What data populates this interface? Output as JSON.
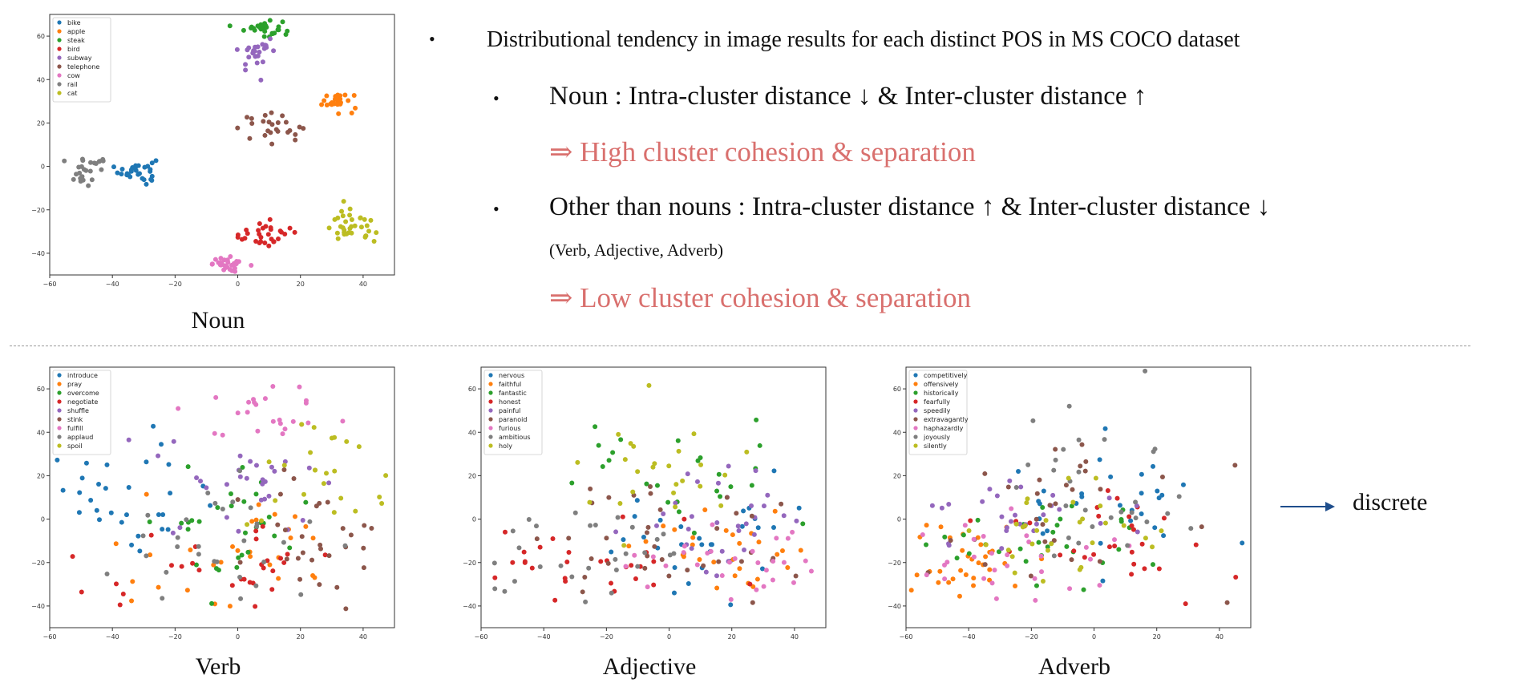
{
  "bullets": {
    "b1": "Distributional tendency in image results for each distinct POS in MS COCO dataset",
    "b2": "Noun : Intra-cluster distance ↓ & Inter-cluster distance ↑",
    "b2_result": "⇒ High cluster cohesion & separation",
    "b3": "Other than nouns : Intra-cluster distance ↑ & Inter-cluster distance ↓",
    "b3_note": "(Verb, Adjective, Adverb)",
    "b3_result": "⇒ Low cluster cohesion & separation",
    "bullet_char": "•"
  },
  "arrow_label": "discrete",
  "colors": {
    "accent_red": "#d9706e",
    "arrow_blue": "#1f4e8c",
    "palette": [
      "#1f77b4",
      "#ff7f0e",
      "#2ca02c",
      "#d62728",
      "#9467bd",
      "#8c564b",
      "#e377c2",
      "#7f7f7f",
      "#bcbd22"
    ]
  },
  "chart_data": [
    {
      "type": "scatter",
      "xlabel": "Noun",
      "xlim": [
        -60,
        50
      ],
      "ylim": [
        -50,
        70
      ],
      "xticks": [
        -60,
        -40,
        -20,
        0,
        20,
        40
      ],
      "yticks": [
        -40,
        -20,
        0,
        20,
        40,
        60
      ],
      "series": [
        {
          "name": "bike",
          "center": [
            -32,
            -2
          ],
          "spread": [
            3,
            3
          ],
          "n": 30
        },
        {
          "name": "apple",
          "center": [
            32,
            30
          ],
          "spread": [
            3,
            2
          ],
          "n": 28
        },
        {
          "name": "steak",
          "center": [
            8,
            64
          ],
          "spread": [
            3,
            2
          ],
          "n": 32
        },
        {
          "name": "bird",
          "center": [
            8,
            -31
          ],
          "spread": [
            5,
            3
          ],
          "n": 30
        },
        {
          "name": "subway",
          "center": [
            6,
            52
          ],
          "spread": [
            3,
            4
          ],
          "n": 25
        },
        {
          "name": "telephone",
          "center": [
            10,
            18
          ],
          "spread": [
            6,
            3
          ],
          "n": 25
        },
        {
          "name": "cow",
          "center": [
            -2,
            -45
          ],
          "spread": [
            3,
            1.5
          ],
          "n": 30
        },
        {
          "name": "rail",
          "center": [
            -48,
            -2
          ],
          "spread": [
            4,
            3
          ],
          "n": 25
        },
        {
          "name": "cat",
          "center": [
            36,
            -28
          ],
          "spread": [
            4,
            4
          ],
          "n": 35
        }
      ]
    },
    {
      "type": "scatter",
      "xlabel": "Verb",
      "xlim": [
        -60,
        50
      ],
      "ylim": [
        -50,
        70
      ],
      "xticks": [
        -60,
        -40,
        -20,
        0,
        20,
        40
      ],
      "yticks": [
        -40,
        -20,
        0,
        20,
        40,
        60
      ],
      "series": [
        {
          "name": "introduce",
          "center": [
            -35,
            10
          ],
          "spread": [
            14,
            14
          ],
          "n": 30
        },
        {
          "name": "pray",
          "center": [
            5,
            -15
          ],
          "spread": [
            18,
            12
          ],
          "n": 30
        },
        {
          "name": "overcome",
          "center": [
            -5,
            -5
          ],
          "spread": [
            14,
            14
          ],
          "n": 30
        },
        {
          "name": "negotiate",
          "center": [
            -5,
            -20
          ],
          "spread": [
            20,
            10
          ],
          "n": 30
        },
        {
          "name": "shuffle",
          "center": [
            5,
            15
          ],
          "spread": [
            15,
            12
          ],
          "n": 30
        },
        {
          "name": "stink",
          "center": [
            25,
            -5
          ],
          "spread": [
            14,
            14
          ],
          "n": 30
        },
        {
          "name": "fulfill",
          "center": [
            12,
            50
          ],
          "spread": [
            10,
            7
          ],
          "n": 25
        },
        {
          "name": "applaud",
          "center": [
            -15,
            -10
          ],
          "spread": [
            20,
            18
          ],
          "n": 30
        },
        {
          "name": "spoil",
          "center": [
            20,
            15
          ],
          "spread": [
            14,
            14
          ],
          "n": 25
        }
      ]
    },
    {
      "type": "scatter",
      "xlabel": "Adjective",
      "xlim": [
        -60,
        50
      ],
      "ylim": [
        -50,
        70
      ],
      "xticks": [
        -60,
        -40,
        -20,
        0,
        20,
        40
      ],
      "yticks": [
        -40,
        -20,
        0,
        20,
        40,
        60
      ],
      "series": [
        {
          "name": "nervous",
          "center": [
            15,
            -5
          ],
          "spread": [
            20,
            14
          ],
          "n": 30
        },
        {
          "name": "faithful",
          "center": [
            20,
            -15
          ],
          "spread": [
            14,
            10
          ],
          "n": 30
        },
        {
          "name": "fantastic",
          "center": [
            5,
            15
          ],
          "spread": [
            20,
            15
          ],
          "n": 25
        },
        {
          "name": "honest",
          "center": [
            -25,
            -20
          ],
          "spread": [
            20,
            10
          ],
          "n": 30
        },
        {
          "name": "painful",
          "center": [
            15,
            0
          ],
          "spread": [
            15,
            12
          ],
          "n": 30
        },
        {
          "name": "paranoid",
          "center": [
            5,
            -10
          ],
          "spread": [
            25,
            14
          ],
          "n": 35
        },
        {
          "name": "furious",
          "center": [
            20,
            -20
          ],
          "spread": [
            18,
            10
          ],
          "n": 30
        },
        {
          "name": "ambitious",
          "center": [
            -25,
            -15
          ],
          "spread": [
            20,
            12
          ],
          "n": 30
        },
        {
          "name": "holy",
          "center": [
            0,
            20
          ],
          "spread": [
            12,
            12
          ],
          "n": 25
        }
      ]
    },
    {
      "type": "scatter",
      "xlabel": "Adverb",
      "xlim": [
        -60,
        50
      ],
      "ylim": [
        -50,
        70
      ],
      "xticks": [
        -60,
        -40,
        -20,
        0,
        20,
        40
      ],
      "yticks": [
        -40,
        -20,
        0,
        20,
        40,
        60
      ],
      "series": [
        {
          "name": "competitively",
          "center": [
            5,
            10
          ],
          "spread": [
            18,
            15
          ],
          "n": 30
        },
        {
          "name": "offensively",
          "center": [
            -40,
            -20
          ],
          "spread": [
            10,
            10
          ],
          "n": 35
        },
        {
          "name": "historically",
          "center": [
            -10,
            -15
          ],
          "spread": [
            20,
            12
          ],
          "n": 30
        },
        {
          "name": "fearfully",
          "center": [
            0,
            -10
          ],
          "spread": [
            20,
            12
          ],
          "n": 30
        },
        {
          "name": "speedily",
          "center": [
            -20,
            5
          ],
          "spread": [
            20,
            12
          ],
          "n": 30
        },
        {
          "name": "extravagantly",
          "center": [
            -10,
            5
          ],
          "spread": [
            25,
            20
          ],
          "n": 30
        },
        {
          "name": "haphazardly",
          "center": [
            -30,
            -15
          ],
          "spread": [
            20,
            12
          ],
          "n": 30
        },
        {
          "name": "joyously",
          "center": [
            5,
            15
          ],
          "spread": [
            20,
            20
          ],
          "n": 30
        },
        {
          "name": "silently",
          "center": [
            -10,
            -5
          ],
          "spread": [
            20,
            12
          ],
          "n": 30
        }
      ]
    }
  ]
}
